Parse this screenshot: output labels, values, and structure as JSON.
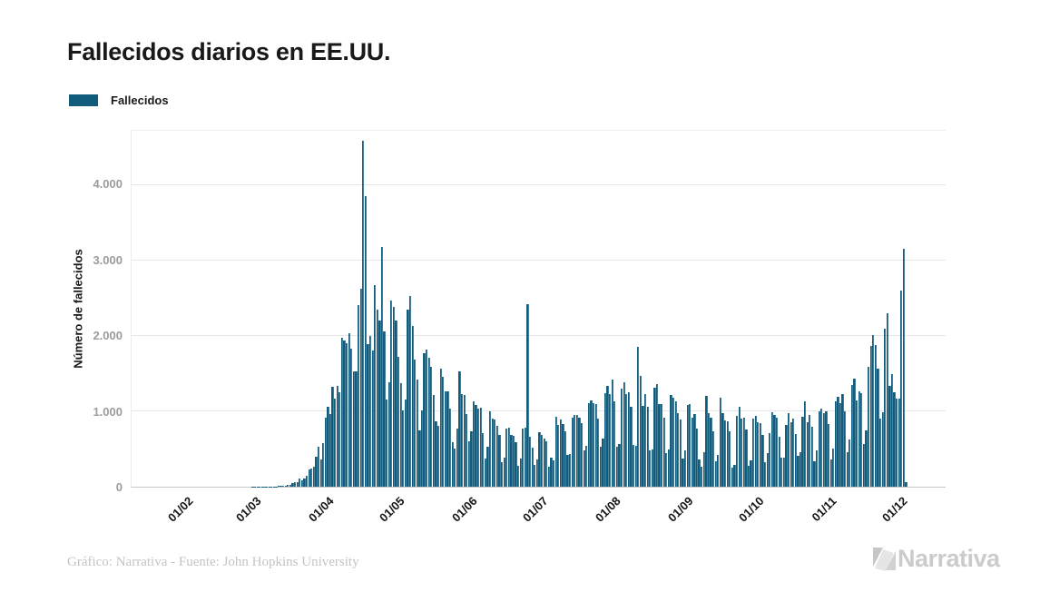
{
  "title": "Fallecidos diarios en EE.UU.",
  "legend": {
    "label": "Fallecidos"
  },
  "footer": {
    "credit": "Gráfico: Narrativa - Fuente: John Hopkins University",
    "brand": "Narrativa"
  },
  "colors": {
    "bar": "#115b7d",
    "title_text": "#191919",
    "ytick_text": "#9c9c9c",
    "xtick_text": "#141414",
    "gridline": "#e7e7e7",
    "footer_text": "#c4c4c4",
    "brand_gray": "#cbcbcb"
  },
  "chart_data": {
    "type": "bar",
    "title": "Fallecidos diarios en EE.UU.",
    "series_name": "Fallecidos",
    "xlabel": "",
    "ylabel": "Número de fallecidos",
    "grid": true,
    "legend_position": "top-left",
    "ylim": [
      0,
      4720
    ],
    "yticks": [
      {
        "value": 0,
        "label": "0"
      },
      {
        "value": 1000,
        "label": "1.000"
      },
      {
        "value": 2000,
        "label": "2.000"
      },
      {
        "value": 3000,
        "label": "3.000"
      },
      {
        "value": 4000,
        "label": "4.000"
      }
    ],
    "x_start": "22/01",
    "xticks": [
      {
        "day_index": 10,
        "label": "01/02"
      },
      {
        "day_index": 39,
        "label": "01/03"
      },
      {
        "day_index": 70,
        "label": "01/04"
      },
      {
        "day_index": 100,
        "label": "01/05"
      },
      {
        "day_index": 131,
        "label": "01/06"
      },
      {
        "day_index": 161,
        "label": "01/07"
      },
      {
        "day_index": 192,
        "label": "01/08"
      },
      {
        "day_index": 223,
        "label": "01/09"
      },
      {
        "day_index": 253,
        "label": "01/10"
      },
      {
        "day_index": 284,
        "label": "01/11"
      },
      {
        "day_index": 314,
        "label": "01/12"
      }
    ],
    "values": [
      0,
      0,
      0,
      0,
      0,
      0,
      0,
      0,
      0,
      0,
      0,
      0,
      0,
      0,
      0,
      0,
      0,
      0,
      0,
      0,
      0,
      0,
      0,
      0,
      0,
      0,
      0,
      0,
      0,
      0,
      0,
      0,
      0,
      0,
      0,
      0,
      0,
      0,
      1,
      1,
      1,
      4,
      3,
      4,
      3,
      4,
      4,
      4,
      5,
      8,
      10,
      11,
      18,
      26,
      23,
      43,
      59,
      62,
      110,
      80,
      111,
      140,
      225,
      247,
      268,
      400,
      525,
      363,
      573,
      912,
      1059,
      968,
      1321,
      1165,
      1342,
      1255,
      1970,
      1940,
      1900,
      2035,
      1830,
      1528,
      1535,
      2407,
      2621,
      4591,
      3857,
      1891,
      1997,
      1804,
      2674,
      2352,
      2202,
      3179,
      2065,
      1157,
      1384,
      2470,
      2390,
      2201,
      1723,
      1375,
      1008,
      1154,
      2353,
      2528,
      2129,
      1687,
      1422,
      750,
      1008,
      1772,
      1813,
      1715,
      1595,
      1218,
      865,
      808,
      1568,
      1461,
      1263,
      1260,
      1035,
      592,
      500,
      774,
      1535,
      1223,
      1212,
      960,
      605,
      730,
      1134,
      1083,
      1031,
      1045,
      709,
      373,
      526,
      994,
      906,
      891,
      802,
      683,
      330,
      389,
      766,
      788,
      690,
      672,
      594,
      282,
      368,
      771,
      780,
      2425,
      666,
      515,
      287,
      356,
      724,
      684,
      641,
      604,
      267,
      382,
      351,
      930,
      816,
      894,
      832,
      733,
      416,
      430,
      919,
      947,
      955,
      920,
      843,
      479,
      539,
      1106,
      1140,
      1112,
      1100,
      906,
      534,
      637,
      1240,
      1336,
      1226,
      1421,
      1130,
      534,
      563,
      1297,
      1387,
      1226,
      1253,
      1061,
      554,
      543,
      1860,
      1464,
      1067,
      1233,
      1054,
      482,
      498,
      1310,
      1356,
      1090,
      1096,
      911,
      446,
      495,
      1215,
      1175,
      1132,
      974,
      888,
      372,
      486,
      1083,
      1090,
      910,
      961,
      773,
      365,
      267,
      463,
      1208,
      979,
      919,
      740,
      336,
      426,
      1184,
      980,
      880,
      866,
      736,
      258,
      288,
      936,
      1059,
      906,
      916,
      759,
      281,
      344,
      898,
      942,
      858,
      848,
      686,
      327,
      445,
      711,
      989,
      950,
      917,
      660,
      391,
      387,
      818,
      981,
      859,
      899,
      695,
      410,
      459,
      930,
      1127,
      856,
      946,
      790,
      340,
      477,
      994,
      1035,
      971,
      1004,
      826,
      362,
      502,
      1130,
      1187,
      1113,
      1232,
      1002,
      459,
      621,
      1347,
      1431,
      1148,
      1266,
      1245,
      564,
      752,
      1587,
      1869,
      2015,
      1878,
      1563,
      909,
      984,
      2101,
      2296,
      1339,
      1495,
      1250,
      1166,
      1172,
      2597,
      3157,
      55
    ]
  }
}
